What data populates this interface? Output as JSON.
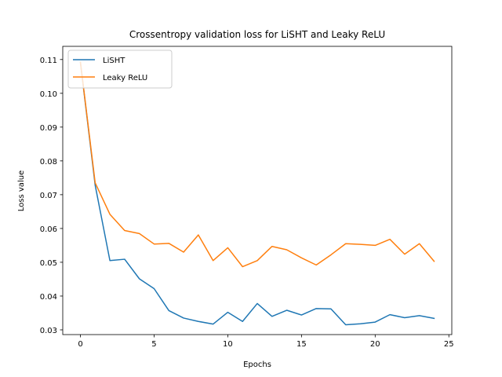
{
  "chart_data": {
    "type": "line",
    "title": "Crossentropy validation loss for LiSHT and Leaky ReLU",
    "xlabel": "Epochs",
    "ylabel": "Loss value",
    "xlim": [
      -1.2,
      25.2
    ],
    "ylim": [
      0.0286,
      0.1139
    ],
    "xticks": [
      0,
      5,
      10,
      15,
      20,
      25
    ],
    "xtick_labels": [
      "0",
      "5",
      "10",
      "15",
      "20",
      "25"
    ],
    "yticks": [
      0.03,
      0.04,
      0.05,
      0.06,
      0.07,
      0.08,
      0.09,
      0.1,
      0.11
    ],
    "ytick_labels": [
      "0.03",
      "0.04",
      "0.05",
      "0.06",
      "0.07",
      "0.08",
      "0.09",
      "0.10",
      "0.11"
    ],
    "grid": false,
    "legend_position": "top-left",
    "x": [
      0,
      1,
      2,
      3,
      4,
      5,
      6,
      7,
      8,
      9,
      10,
      11,
      12,
      13,
      14,
      15,
      16,
      17,
      18,
      19,
      20,
      21,
      22,
      23,
      24
    ],
    "series": [
      {
        "name": "LiSHT",
        "color": "#1f77b4",
        "values": [
          0.1091,
          0.0728,
          0.0505,
          0.0509,
          0.0451,
          0.0422,
          0.0357,
          0.0335,
          0.0325,
          0.0317,
          0.0352,
          0.0325,
          0.0378,
          0.034,
          0.0358,
          0.0344,
          0.0363,
          0.0362,
          0.0315,
          0.0318,
          0.0323,
          0.0345,
          0.0336,
          0.0342,
          0.0334
        ]
      },
      {
        "name": "Leaky ReLU",
        "color": "#ff7f0e",
        "values": [
          0.1092,
          0.0735,
          0.0642,
          0.0594,
          0.0585,
          0.0554,
          0.0556,
          0.053,
          0.0581,
          0.0505,
          0.0543,
          0.0487,
          0.0505,
          0.0547,
          0.0537,
          0.0513,
          0.0492,
          0.0522,
          0.0555,
          0.0553,
          0.055,
          0.0568,
          0.0524,
          0.0555,
          0.0503
        ]
      }
    ]
  }
}
